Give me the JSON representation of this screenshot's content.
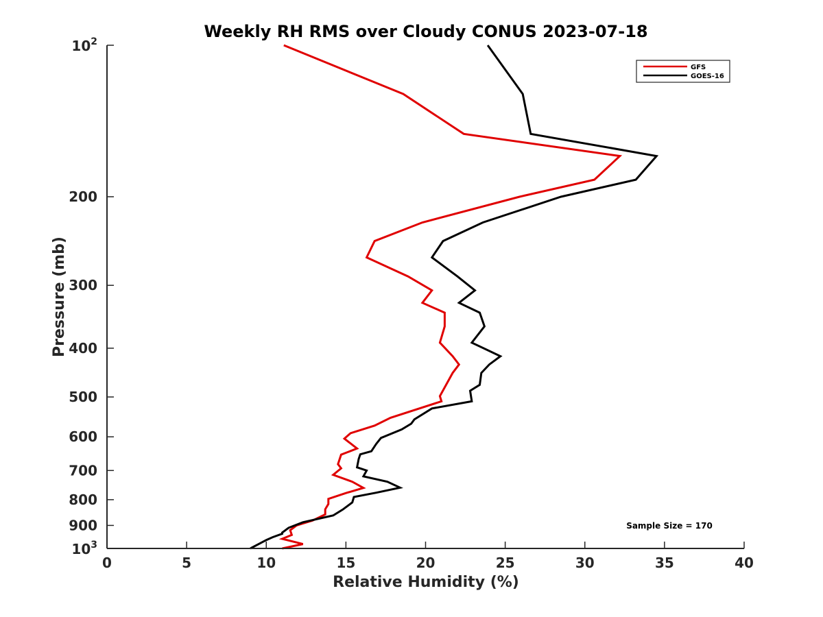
{
  "chart_data": {
    "type": "line",
    "title": "Weekly RH RMS over Cloudy CONUS 2023-07-18",
    "xlabel": "Relative Humidity (%)",
    "ylabel": "Pressure (mb)",
    "xlim": [
      0,
      40
    ],
    "ylim": [
      100,
      1000
    ],
    "y_scale": "log",
    "y_reversed": true,
    "x_ticks": [
      "0",
      "5",
      "10",
      "15",
      "20",
      "25",
      "30",
      "35",
      "40"
    ],
    "y_ticks": [
      {
        "value": 100,
        "base": "10",
        "exp": "2"
      },
      {
        "value": 200,
        "label": "200"
      },
      {
        "value": 300,
        "label": "300"
      },
      {
        "value": 400,
        "label": "400"
      },
      {
        "value": 500,
        "label": "500"
      },
      {
        "value": 600,
        "label": "600"
      },
      {
        "value": 700,
        "label": "700"
      },
      {
        "value": 800,
        "label": "800"
      },
      {
        "value": 900,
        "label": "900"
      },
      {
        "value": 1000,
        "base": "10",
        "exp": "3"
      }
    ],
    "legend_position": "top-right",
    "annotation": "Sample Size = 170",
    "series": [
      {
        "name": "GFS",
        "color": "#e00000",
        "points": [
          [
            11.1,
            100
          ],
          [
            18.6,
            125
          ],
          [
            22.4,
            150
          ],
          [
            32.2,
            166
          ],
          [
            30.6,
            185
          ],
          [
            25.9,
            200
          ],
          [
            19.8,
            225
          ],
          [
            16.8,
            245
          ],
          [
            16.3,
            264
          ],
          [
            18.9,
            288
          ],
          [
            20.4,
            307
          ],
          [
            19.8,
            325
          ],
          [
            21.2,
            340
          ],
          [
            21.2,
            362
          ],
          [
            20.9,
            390
          ],
          [
            21.7,
            415
          ],
          [
            22.1,
            431
          ],
          [
            21.7,
            448
          ],
          [
            20.9,
            498
          ],
          [
            21.0,
            510
          ],
          [
            17.8,
            550
          ],
          [
            16.8,
            570
          ],
          [
            15.3,
            590
          ],
          [
            14.9,
            605
          ],
          [
            15.7,
            633
          ],
          [
            14.7,
            651
          ],
          [
            14.5,
            680
          ],
          [
            14.7,
            693
          ],
          [
            14.2,
            714
          ],
          [
            15.4,
            737
          ],
          [
            16.1,
            758
          ],
          [
            15.0,
            776
          ],
          [
            13.9,
            797
          ],
          [
            13.9,
            816
          ],
          [
            13.7,
            836
          ],
          [
            13.7,
            856
          ],
          [
            12.9,
            880
          ],
          [
            11.9,
            900
          ],
          [
            11.5,
            920
          ],
          [
            11.6,
            940
          ],
          [
            11.0,
            957
          ],
          [
            12.3,
            980
          ],
          [
            11.0,
            1000
          ]
        ]
      },
      {
        "name": "GOES-16",
        "color": "#000000",
        "points": [
          [
            23.9,
            100
          ],
          [
            26.1,
            125
          ],
          [
            26.6,
            150
          ],
          [
            34.5,
            166
          ],
          [
            33.2,
            185
          ],
          [
            28.5,
            200
          ],
          [
            23.6,
            225
          ],
          [
            21.1,
            245
          ],
          [
            20.4,
            264
          ],
          [
            22.0,
            288
          ],
          [
            23.1,
            307
          ],
          [
            22.1,
            325
          ],
          [
            23.4,
            340
          ],
          [
            23.7,
            362
          ],
          [
            22.9,
            390
          ],
          [
            24.7,
            415
          ],
          [
            24.0,
            431
          ],
          [
            23.5,
            448
          ],
          [
            23.4,
            473
          ],
          [
            22.8,
            486
          ],
          [
            22.9,
            510
          ],
          [
            20.4,
            527
          ],
          [
            19.3,
            554
          ],
          [
            19.1,
            565
          ],
          [
            18.5,
            580
          ],
          [
            17.2,
            603
          ],
          [
            16.9,
            620
          ],
          [
            16.6,
            641
          ],
          [
            15.9,
            650
          ],
          [
            15.8,
            664
          ],
          [
            15.7,
            690
          ],
          [
            16.3,
            700
          ],
          [
            16.1,
            719
          ],
          [
            17.6,
            737
          ],
          [
            18.4,
            757
          ],
          [
            16.9,
            775
          ],
          [
            15.5,
            790
          ],
          [
            15.4,
            810
          ],
          [
            14.8,
            837
          ],
          [
            14.2,
            860
          ],
          [
            12.3,
            887
          ],
          [
            11.4,
            910
          ],
          [
            11.0,
            930
          ],
          [
            11.0,
            935
          ],
          [
            10.4,
            950
          ],
          [
            10.0,
            962
          ],
          [
            9.0,
            1000
          ]
        ]
      }
    ]
  }
}
